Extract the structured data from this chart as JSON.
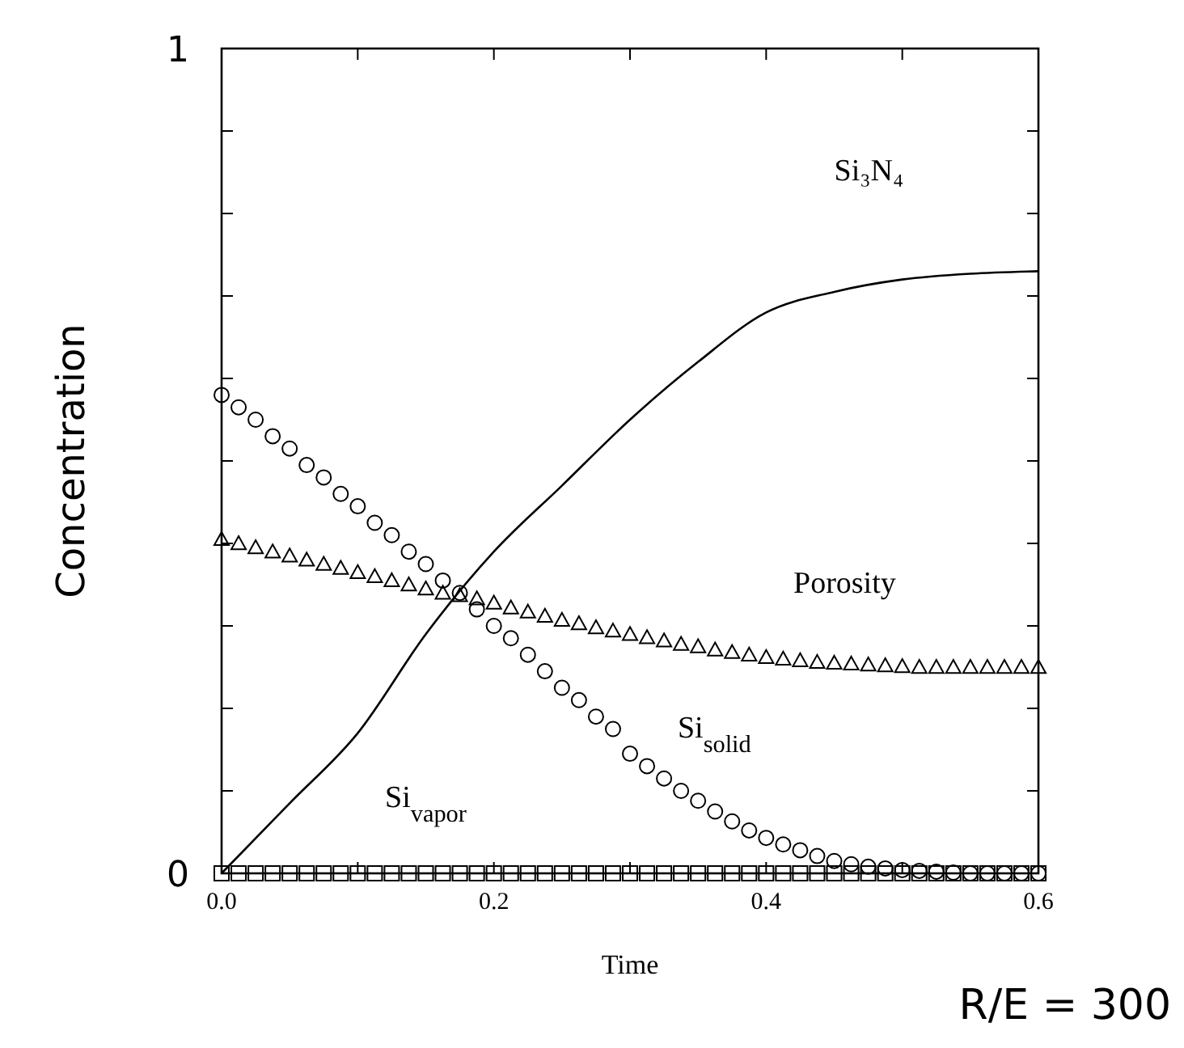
{
  "chart_data": {
    "type": "scatter",
    "xlabel": "Time",
    "ylabel": "Concentration",
    "annotations": [
      "R/E = 300"
    ],
    "xlim": [
      0,
      0.6
    ],
    "ylim": [
      0,
      1
    ],
    "xticks": [
      {
        "value": 0,
        "label": "0.0"
      },
      {
        "value": 0.1,
        "label": null
      },
      {
        "value": 0.2,
        "label": "0.2"
      },
      {
        "value": 0.3,
        "label": null
      },
      {
        "value": 0.4,
        "label": "0.4"
      },
      {
        "value": 0.5,
        "label": null
      },
      {
        "value": 0.6,
        "label": "0.6"
      }
    ],
    "yticks": [
      0,
      {
        "value": 0.1,
        "label": null
      },
      {
        "value": 0.2,
        "label": null
      },
      {
        "value": 0.3,
        "label": null
      },
      {
        "value": 0.4,
        "label": null
      },
      {
        "value": 0.5,
        "label": null
      },
      {
        "value": 0.6,
        "label": null
      },
      {
        "value": 0.7,
        "label": null
      },
      {
        "value": 0.8,
        "label": null
      },
      {
        "value": 0.9,
        "label": null
      },
      1
    ],
    "grid": false,
    "x": [
      0,
      0.0125,
      0.025,
      0.0375,
      0.05,
      0.0625,
      0.075,
      0.0875,
      0.1,
      0.1125,
      0.125,
      0.1375,
      0.15,
      0.1625,
      0.175,
      0.1875,
      0.2,
      0.2125,
      0.225,
      0.2375,
      0.25,
      0.2625,
      0.275,
      0.2875,
      0.3,
      0.3125,
      0.325,
      0.3375,
      0.35,
      0.3625,
      0.375,
      0.3875,
      0.4,
      0.4125,
      0.425,
      0.4375,
      0.45,
      0.4625,
      0.475,
      0.4875,
      0.5,
      0.5125,
      0.525,
      0.5375,
      0.55,
      0.5625,
      0.575,
      0.5875,
      0.6
    ],
    "series": [
      {
        "name": "Si₃N₄",
        "type": "line",
        "color": "#000000",
        "marker": "none",
        "line_style": "solid",
        "x": [
          0,
          0.05,
          0.1,
          0.15,
          0.2,
          0.25,
          0.3,
          0.35,
          0.4,
          0.45,
          0.5,
          0.55,
          0.6
        ],
        "values": [
          0,
          0.085,
          0.17,
          0.29,
          0.39,
          0.47,
          0.55,
          0.62,
          0.68,
          0.705,
          0.72,
          0.727,
          0.73
        ]
      },
      {
        "name": "Si$_{solid}$",
        "color": "#000000",
        "marker": "circle",
        "values": [
          0.58,
          0.565,
          0.55,
          0.53,
          0.515,
          0.495,
          0.48,
          0.46,
          0.445,
          0.425,
          0.41,
          0.39,
          0.375,
          0.355,
          0.34,
          0.32,
          0.3,
          0.285,
          0.265,
          0.245,
          0.225,
          0.21,
          0.19,
          0.175,
          0.145,
          0.13,
          0.115,
          0.1,
          0.088,
          0.075,
          0.063,
          0.052,
          0.043,
          0.035,
          0.028,
          0.021,
          0.015,
          0.011,
          0.008,
          0.006,
          0.004,
          0.003,
          0.002,
          0.001,
          0,
          0,
          0,
          0,
          0
        ]
      },
      {
        "name": "Porosity",
        "color": "#000000",
        "marker": "triangle",
        "values": [
          0.405,
          0.4,
          0.395,
          0.39,
          0.385,
          0.38,
          0.375,
          0.37,
          0.365,
          0.36,
          0.355,
          0.35,
          0.345,
          0.34,
          0.337,
          0.333,
          0.328,
          0.322,
          0.317,
          0.312,
          0.307,
          0.303,
          0.298,
          0.294,
          0.29,
          0.286,
          0.282,
          0.278,
          0.275,
          0.271,
          0.268,
          0.265,
          0.262,
          0.26,
          0.258,
          0.256,
          0.255,
          0.254,
          0.253,
          0.252,
          0.251,
          0.25,
          0.25,
          0.25,
          0.25,
          0.25,
          0.25,
          0.25,
          0.25
        ]
      },
      {
        "name": "Si$_{vapor}$",
        "color": "#000000",
        "marker": "square",
        "values": [
          0,
          0,
          0,
          0,
          0,
          0,
          0,
          0,
          0,
          0,
          0,
          0,
          0,
          0,
          0,
          0,
          0,
          0,
          0,
          0,
          0,
          0,
          0,
          0,
          0,
          0,
          0,
          0,
          0,
          0,
          0,
          0,
          0,
          0,
          0,
          0,
          0,
          0,
          0,
          0,
          0,
          0,
          0,
          0,
          0,
          0,
          0,
          0,
          0
        ]
      }
    ]
  }
}
